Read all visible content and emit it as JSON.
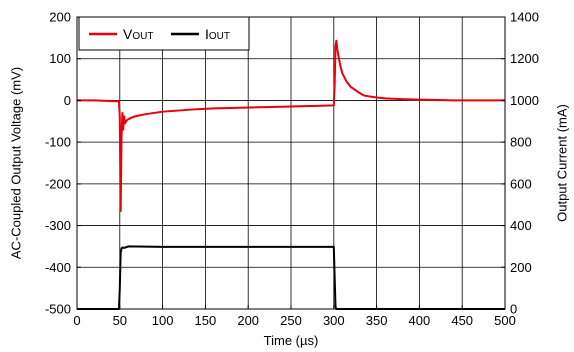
{
  "chart_data": {
    "type": "line",
    "xlabel": "Time (µs)",
    "ylabel_left": "AC-Coupled Output Voltage (mV)",
    "ylabel_right": "Output Current (mA)",
    "xlim": [
      0,
      500
    ],
    "ylim_left": [
      -500,
      200
    ],
    "ylim_right": [
      0,
      1400
    ],
    "x_ticks": [
      0,
      50,
      100,
      150,
      200,
      250,
      300,
      350,
      400,
      450,
      500
    ],
    "y_left_ticks": [
      -500,
      -400,
      -300,
      -200,
      -100,
      0,
      100,
      200
    ],
    "y_right_ticks": [
      0,
      200,
      400,
      600,
      800,
      1000,
      1200,
      1400
    ],
    "grid": true,
    "legend_position": "top-left",
    "series": [
      {
        "name": "VOUT",
        "legend_main": "V",
        "legend_sub": "OUT",
        "axis": "left",
        "color": "#e8000b",
        "x": [
          0,
          20,
          45,
          49,
          50,
          51,
          52,
          53,
          54,
          55,
          56,
          58,
          60,
          65,
          70,
          80,
          90,
          100,
          120,
          140,
          160,
          180,
          200,
          220,
          240,
          260,
          280,
          299,
          300,
          301,
          302,
          303,
          304,
          306,
          308,
          310,
          315,
          320,
          325,
          330,
          335,
          340,
          350,
          360,
          380,
          400,
          420,
          440,
          460,
          480,
          500
        ],
        "y": [
          0,
          0,
          -2,
          -2,
          -40,
          -265,
          -90,
          -30,
          -70,
          -38,
          -55,
          -48,
          -45,
          -40,
          -37,
          -33,
          -30,
          -27,
          -24,
          -21,
          -19,
          -18,
          -17,
          -16,
          -15,
          -14,
          -13,
          -12,
          -12,
          40,
          130,
          143,
          125,
          100,
          80,
          65,
          45,
          32,
          25,
          18,
          12,
          10,
          7,
          5,
          3,
          2,
          1,
          0,
          0,
          0,
          0
        ]
      },
      {
        "name": "IOUT",
        "legend_main": "I",
        "legend_sub": "OUT",
        "axis": "right",
        "color": "#000000",
        "x": [
          0,
          49,
          50,
          51,
          52,
          53,
          55,
          60,
          100,
          200,
          300,
          301,
          302,
          303,
          350,
          500
        ],
        "y": [
          0,
          0,
          100,
          270,
          290,
          295,
          293,
          300,
          298,
          298,
          298,
          150,
          10,
          0,
          0,
          0
        ]
      }
    ]
  }
}
